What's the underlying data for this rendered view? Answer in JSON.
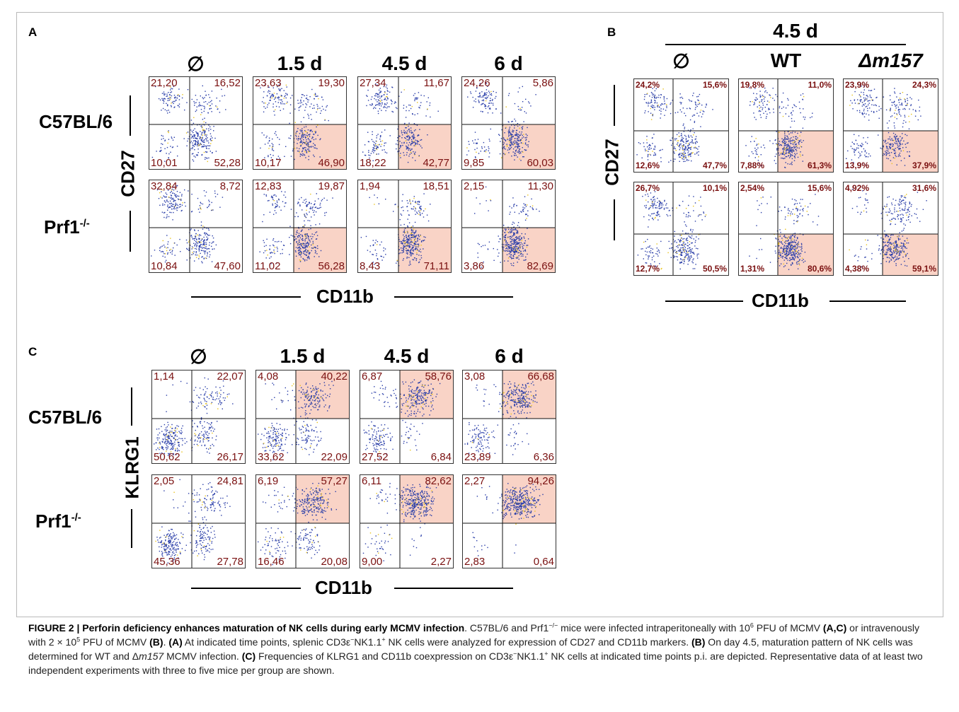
{
  "figure": {
    "panel_a": {
      "letter": "A",
      "columns": [
        "∅",
        "1.5 d",
        "4.5 d",
        "6 d"
      ],
      "rows": [
        {
          "name": "C57BL/6",
          "name_sup": "",
          "plots": [
            {
              "tl": "21,20",
              "tr": "16,52",
              "bl": "10,01",
              "br": "52,28"
            },
            {
              "tl": "23,63",
              "tr": "19,30",
              "bl": "10,17",
              "br": "46,90"
            },
            {
              "tl": "27,34",
              "tr": "11,67",
              "bl": "18,22",
              "br": "42,77"
            },
            {
              "tl": "24,26",
              "tr": "5,86",
              "bl": "9,85",
              "br": "60,03"
            }
          ]
        },
        {
          "name": "Prf1",
          "name_sup": "-/-",
          "plots": [
            {
              "tl": "32,84",
              "tr": "8,72",
              "bl": "10,84",
              "br": "47,60"
            },
            {
              "tl": "12,83",
              "tr": "19,87",
              "bl": "11,02",
              "br": "56,28"
            },
            {
              "tl": "1,94",
              "tr": "18,51",
              "bl": "8,43",
              "br": "71,11"
            },
            {
              "tl": "2,15",
              "tr": "11,30",
              "bl": "3,86",
              "br": "82,69"
            }
          ]
        }
      ],
      "y_axis": "CD27",
      "x_axis": "CD11b"
    },
    "panel_b": {
      "letter": "B",
      "group_header": "4.5 d",
      "columns": [
        "∅",
        "WT",
        "Δm157"
      ],
      "rows": [
        {
          "plots": [
            {
              "tl": "24,2%",
              "tr": "15,6%",
              "bl": "12,6%",
              "br": "47,7%"
            },
            {
              "tl": "19,8%",
              "tr": "11,0%",
              "bl": "7,88%",
              "br": "61,3%"
            },
            {
              "tl": "23,9%",
              "tr": "24,3%",
              "bl": "13,9%",
              "br": "37,9%"
            }
          ]
        },
        {
          "plots": [
            {
              "tl": "26,7%",
              "tr": "10,1%",
              "bl": "12,7%",
              "br": "50,5%"
            },
            {
              "tl": "2,54%",
              "tr": "15,6%",
              "bl": "1,31%",
              "br": "80,6%"
            },
            {
              "tl": "4,92%",
              "tr": "31,6%",
              "bl": "4,38%",
              "br": "59,1%"
            }
          ]
        }
      ],
      "y_axis": "CD27",
      "x_axis": "CD11b"
    },
    "panel_c": {
      "letter": "C",
      "columns": [
        "∅",
        "1.5 d",
        "4.5 d",
        "6 d"
      ],
      "rows": [
        {
          "name": "C57BL/6",
          "name_sup": "",
          "plots": [
            {
              "tl": "1,14",
              "tr": "22,07",
              "bl": "50,62",
              "br": "26,17"
            },
            {
              "tl": "4,08",
              "tr": "40,22",
              "bl": "33,62",
              "br": "22,09"
            },
            {
              "tl": "6,87",
              "tr": "58,76",
              "bl": "27,52",
              "br": "6,84"
            },
            {
              "tl": "3,08",
              "tr": "66,68",
              "bl": "23,89",
              "br": "6,36"
            }
          ]
        },
        {
          "name": "Prf1",
          "name_sup": "-/-",
          "plots": [
            {
              "tl": "2,05",
              "tr": "24,81",
              "bl": "45,36",
              "br": "27,78"
            },
            {
              "tl": "6,19",
              "tr": "57,27",
              "bl": "16,46",
              "br": "20,08"
            },
            {
              "tl": "6,11",
              "tr": "82,62",
              "bl": "9,00",
              "br": "2,27"
            },
            {
              "tl": "2,27",
              "tr": "94,26",
              "bl": "2,83",
              "br": "0,64"
            }
          ]
        }
      ],
      "y_axis": "KLRG1",
      "x_axis": "CD11b"
    }
  },
  "colors": {
    "highlight": "#f9d3c6",
    "quadrant_text": "#7a1010",
    "dot_blue": "#2a3ea8",
    "dot_yellow": "#e8c21a"
  },
  "caption": {
    "label": "FIGURE 2 | Perforin deficiency enhances maturation of NK cells during early MCMV infection",
    "p1": ". C57BL/6 and Prf1",
    "sup_ko": "−/−",
    "p2": " mice were infected intraperitoneally with 10",
    "sup_6": "6",
    "p3": " PFU of MCMV ",
    "ref_ac": "(A,C)",
    "p4": " or intravenously with 2 × 10",
    "sup_5": "5",
    "p5": " PFU of MCMV ",
    "ref_b": "(B)",
    "p6": ". ",
    "ref_a": "(A)",
    "p7": " At indicated time points, splenic CD3ε",
    "sup_minus1": "−",
    "p8": "NK1.1",
    "sup_plus1": "+",
    "p9": " NK cells were analyzed for expression of CD27 and CD11b markers. ",
    "ref_b2": "(B)",
    "p10": " On day 4.5, maturation pattern of NK cells was determined for WT and Δ",
    "italic_m157": "m157",
    "p11": " MCMV infection. ",
    "ref_c": "(C)",
    "p12": " Frequencies of KLRG1 and CD11b coexpression on CD3ε",
    "sup_minus2": "−",
    "p13": "NK1.1",
    "sup_plus2": "+",
    "p14": " NK cells at indicated time points p.i. are depicted. Representative data of at least two independent experiments with three to five mice per group are shown."
  }
}
